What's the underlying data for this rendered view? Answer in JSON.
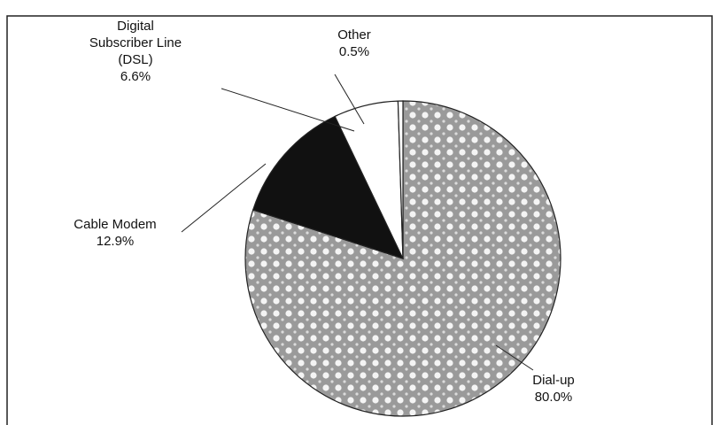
{
  "chart_data": {
    "type": "pie",
    "categories": [
      "Dial-up",
      "Cable Modem",
      "Digital\nSubscriber Line\n(DSL)",
      "Other"
    ],
    "values": [
      80.0,
      12.9,
      6.6,
      0.5
    ],
    "value_labels": [
      "80.0%",
      "12.9%",
      "6.6%",
      "0.5%"
    ],
    "colors": [
      "pattern",
      "#111111",
      "#ffffff",
      "#ffffff"
    ]
  }
}
